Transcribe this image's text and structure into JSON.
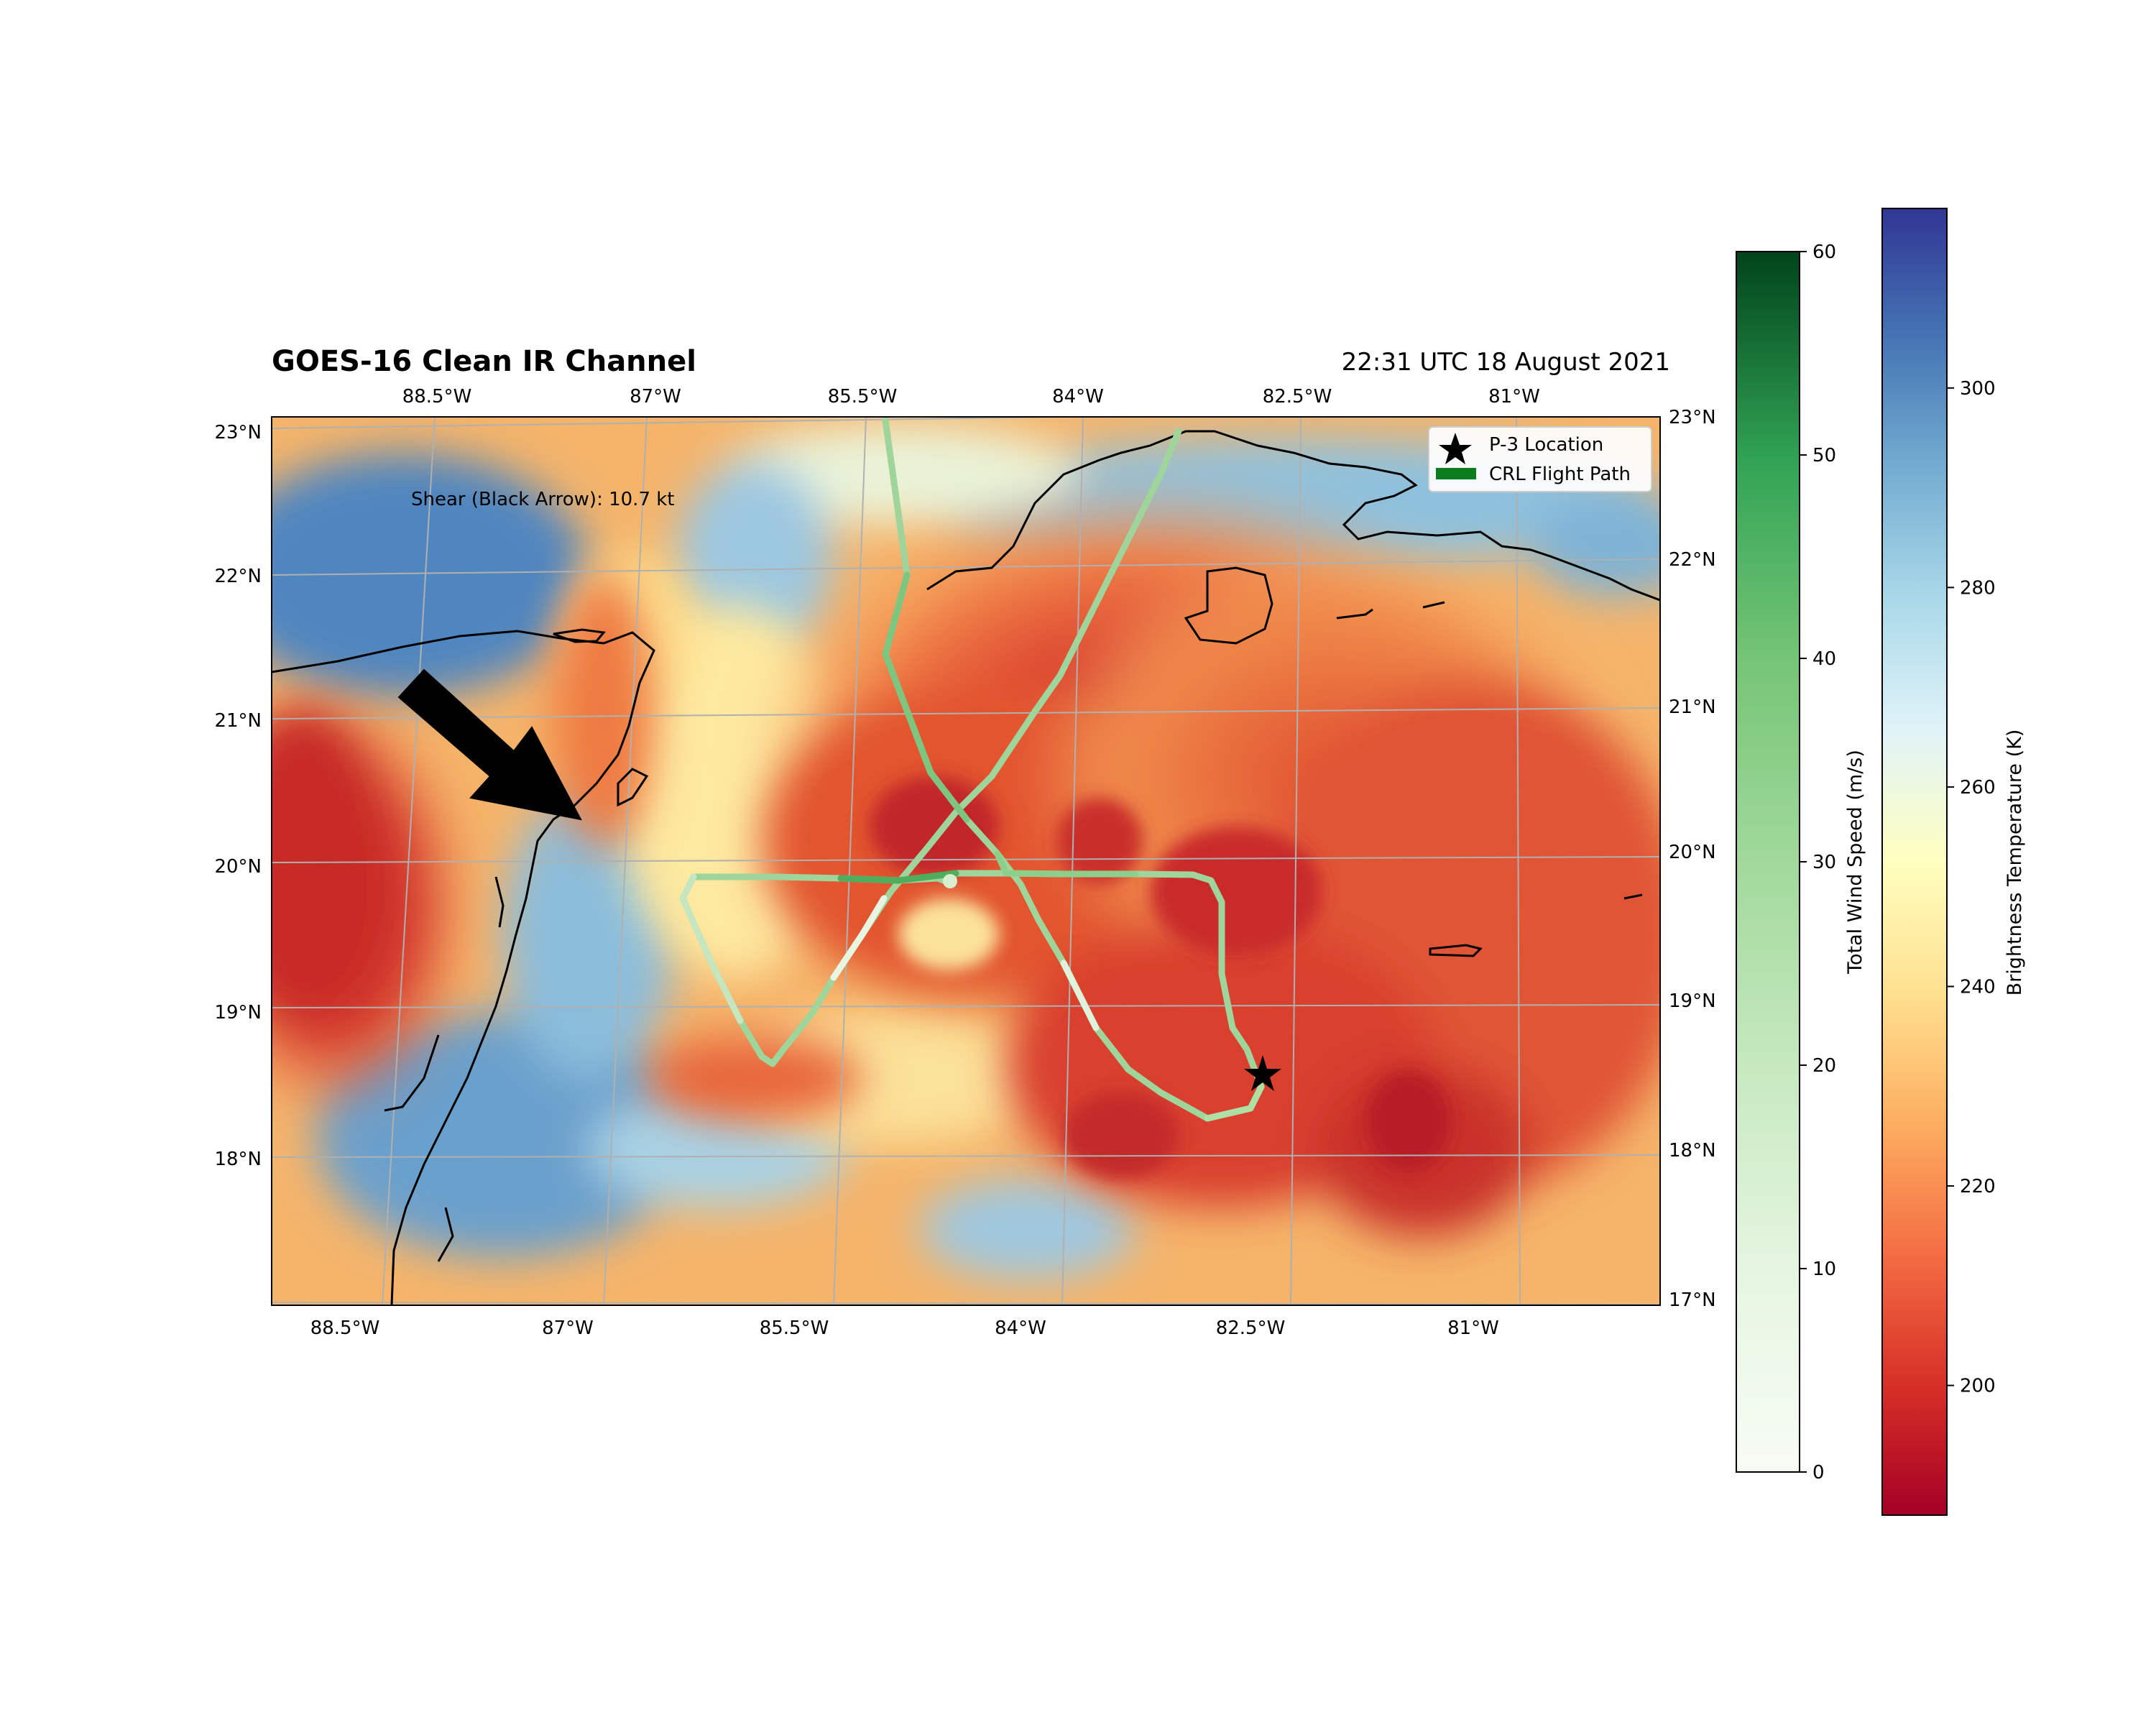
{
  "figure": {
    "title": "GOES-16 Clean IR Channel",
    "timestamp": "22:31 UTC 18 August 2021"
  },
  "map": {
    "lon_labels": [
      "88.5°W",
      "87°W",
      "85.5°W",
      "84°W",
      "82.5°W",
      "81°W"
    ],
    "lat_labels": [
      "23°N",
      "22°N",
      "21°N",
      "20°N",
      "19°N",
      "18°N",
      "17°N"
    ],
    "shear_annotation": "Shear (Black Arrow): 10.7 kt",
    "colors": {
      "cold_cloud": "#c62a2a",
      "mid_cloud": "#f39a52",
      "warm_surface": "#4f86c0",
      "flight_path": "#1a8a2a",
      "coastline": "#000000"
    }
  },
  "legend": {
    "items": [
      {
        "label": "P-3 Location",
        "marker": "star-icon"
      },
      {
        "label": "CRL Flight Path",
        "marker": "green-line"
      }
    ]
  },
  "colorbars": {
    "wind": {
      "label": "Total Wind Speed (m/s)",
      "ticks": [
        "0",
        "10",
        "20",
        "30",
        "40",
        "50",
        "60"
      ],
      "range": [
        0,
        60
      ],
      "colormap": "Greens"
    },
    "tb": {
      "label": "Brightness Temperature (K)",
      "ticks": [
        "200",
        "220",
        "240",
        "260",
        "280",
        "300"
      ],
      "range": [
        187,
        318
      ],
      "colormap": "RdYlBu"
    }
  }
}
